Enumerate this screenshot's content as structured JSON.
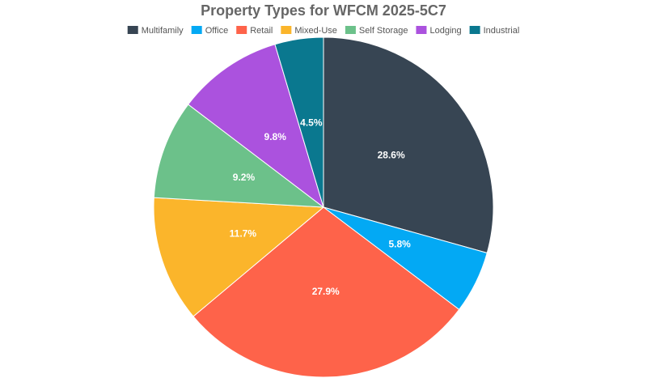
{
  "chart_data": {
    "type": "pie",
    "title": "Property Types for WFCM 2025-5C7",
    "categories": [
      "Multifamily",
      "Office",
      "Retail",
      "Mixed-Use",
      "Self Storage",
      "Lodging",
      "Industrial"
    ],
    "values": [
      28.6,
      5.8,
      27.9,
      11.7,
      9.2,
      9.8,
      4.5
    ],
    "value_labels": [
      "28.6%",
      "5.8%",
      "27.9%",
      "11.7%",
      "9.2%",
      "9.8%",
      "4.5%"
    ],
    "colors": [
      "#374553",
      "#03a9f4",
      "#fe634a",
      "#fbb52b",
      "#6cc18a",
      "#ab52de",
      "#0a788f"
    ],
    "legend": "top"
  }
}
